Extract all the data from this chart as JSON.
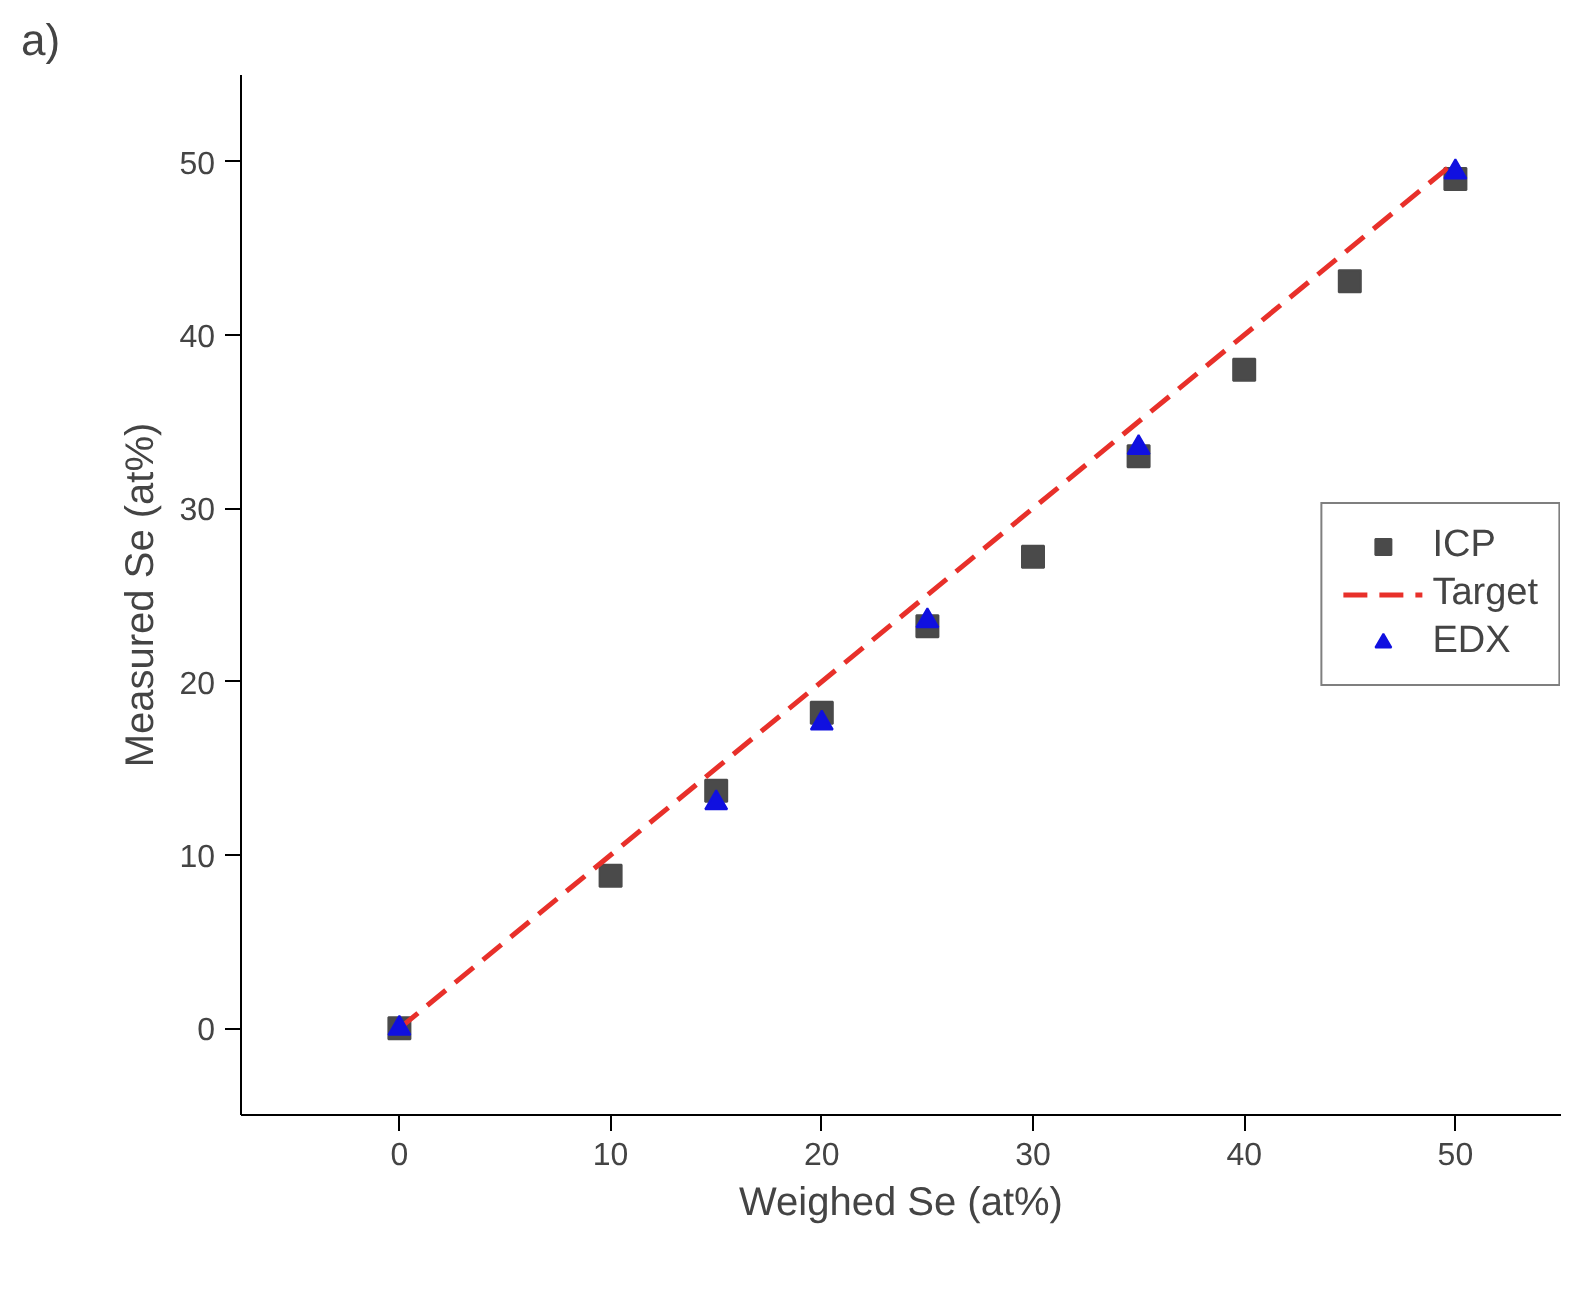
{
  "chart_data": {
    "type": "scatter",
    "xlabel": "Weighed Se (at%)",
    "ylabel": "Measured Se (at%)",
    "annotations": [
      "a)"
    ],
    "xlim": [
      -7.5,
      55
    ],
    "ylim": [
      -5,
      55
    ],
    "xticks": [
      0,
      10,
      20,
      30,
      40,
      50
    ],
    "yticks": [
      0,
      10,
      20,
      30,
      40,
      50
    ],
    "grid": false,
    "legend": "right",
    "series": [
      {
        "name": "ICP",
        "color": "#4a4a4a",
        "marker": "square",
        "x": [
          0,
          10,
          15,
          20,
          25,
          30,
          35,
          40,
          45,
          50
        ],
        "values": [
          0,
          8.8,
          13.7,
          18.2,
          23.2,
          27.2,
          33,
          38,
          43.1,
          49
        ]
      },
      {
        "name": "Target",
        "type": "line",
        "color": "#e8302a",
        "line_style": "dashed",
        "x": [
          0,
          50
        ],
        "values": [
          0,
          50
        ]
      },
      {
        "name": "EDX",
        "color": "#1010e0",
        "marker": "triangle",
        "x": [
          0,
          15,
          20,
          25,
          35,
          50
        ],
        "values": [
          0,
          13,
          17.6,
          23.5,
          33.5,
          49.4
        ]
      }
    ]
  }
}
